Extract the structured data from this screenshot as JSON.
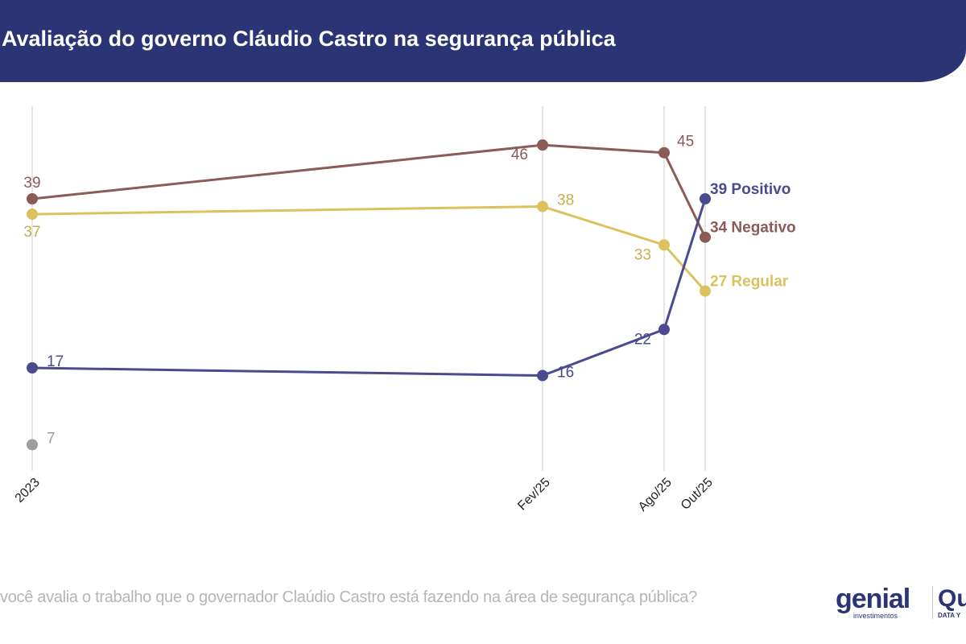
{
  "header": {
    "title": "Avaliação do governo Cláudio Castro na segurança pública"
  },
  "watermark": {
    "brand": "genial",
    "sub": "investimentos"
  },
  "footer": {
    "question": "você avalia o trabalho que o governador Claúdio Castro está fazendo na área de segurança pública?",
    "logo_genial": "genial",
    "logo_genial_sub": "investimentos",
    "logo_quaest": "Qu",
    "logo_quaest_sub": "DATA Y"
  },
  "chart_data": {
    "type": "line",
    "categories": [
      "2023",
      "Fev/25",
      "Ago/25",
      "Out/25"
    ],
    "series": [
      {
        "name": "Negativo",
        "color": "#8c5b56",
        "values": [
          39,
          46,
          45,
          34
        ],
        "end_label": "34 Negativo"
      },
      {
        "name": "Regular",
        "color": "#dcc15f",
        "values": [
          37,
          38,
          33,
          27
        ],
        "end_label": "27 Regular"
      },
      {
        "name": "Positivo",
        "color": "#4b4a8e",
        "values": [
          17,
          16,
          22,
          39
        ],
        "end_label": "39 Positivo"
      },
      {
        "color": "#9e9e9e",
        "values": [
          7,
          null,
          null,
          null
        ]
      }
    ],
    "grid": "vertical",
    "legend": "end-of-line labels"
  }
}
